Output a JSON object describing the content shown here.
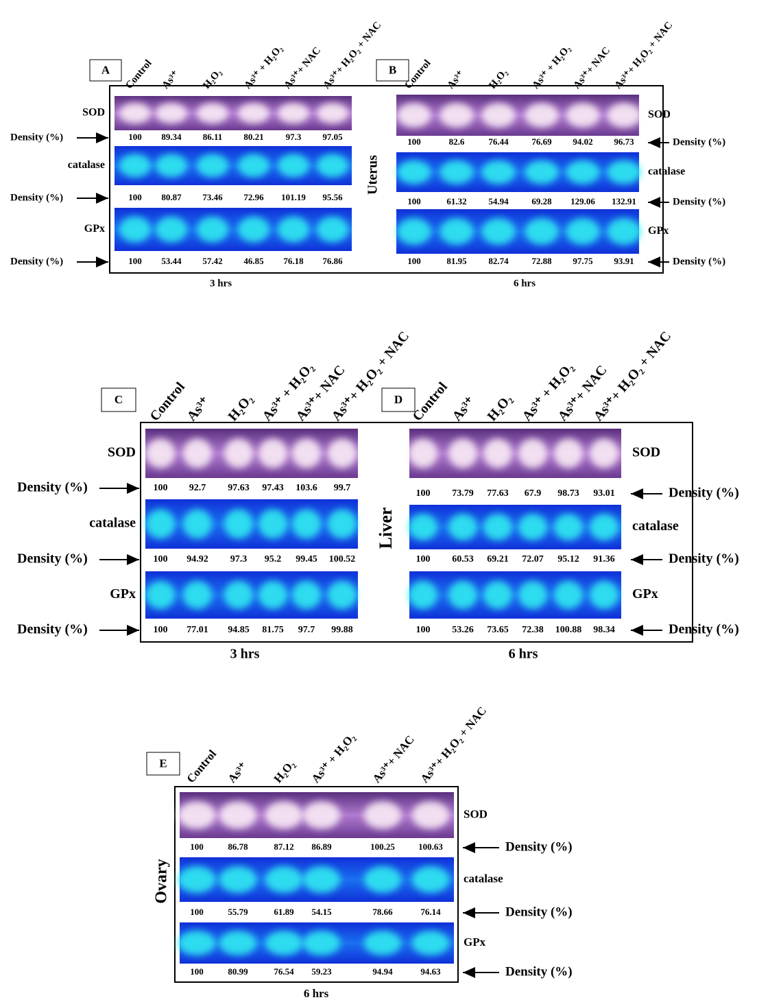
{
  "lanes": [
    "Control",
    "As³⁺",
    "H₂O₂",
    "As³⁺ + H₂O₂",
    "As³⁺+ NAC",
    "As³⁺+ H₂O₂ + NAC"
  ],
  "density_label": "Density (%)",
  "groups": [
    {
      "tissue": "Uterus",
      "panels": [
        {
          "letter": "A",
          "time": "3 hrs",
          "rows": [
            {
              "enzyme": "SOD",
              "densities": [
                100,
                89.34,
                86.11,
                80.21,
                97.3,
                97.05
              ]
            },
            {
              "enzyme": "catalase",
              "densities": [
                100,
                80.87,
                73.46,
                72.96,
                101.19,
                95.56
              ]
            },
            {
              "enzyme": "GPx",
              "densities": [
                100,
                53.44,
                57.42,
                46.85,
                76.18,
                76.86
              ]
            }
          ]
        },
        {
          "letter": "B",
          "time": "6 hrs",
          "rows": [
            {
              "enzyme": "SOD",
              "densities": [
                100,
                82.6,
                76.44,
                76.69,
                94.02,
                96.73
              ]
            },
            {
              "enzyme": "catalase",
              "densities": [
                100,
                61.32,
                54.94,
                69.28,
                129.06,
                132.91
              ]
            },
            {
              "enzyme": "GPx",
              "densities": [
                100,
                81.95,
                82.74,
                72.88,
                97.75,
                93.91
              ]
            }
          ]
        }
      ]
    },
    {
      "tissue": "Liver",
      "panels": [
        {
          "letter": "C",
          "time": "3 hrs",
          "rows": [
            {
              "enzyme": "SOD",
              "densities": [
                100,
                92.7,
                97.63,
                97.43,
                103.6,
                99.7
              ]
            },
            {
              "enzyme": "catalase",
              "densities": [
                100,
                94.92,
                97.3,
                95.2,
                99.45,
                100.52
              ]
            },
            {
              "enzyme": "GPx",
              "densities": [
                100,
                77.01,
                94.85,
                81.75,
                97.7,
                99.88
              ]
            }
          ]
        },
        {
          "letter": "D",
          "time": "6 hrs",
          "rows": [
            {
              "enzyme": "SOD",
              "densities": [
                100,
                73.79,
                77.63,
                67.9,
                98.73,
                93.01
              ]
            },
            {
              "enzyme": "catalase",
              "densities": [
                100,
                60.53,
                69.21,
                72.07,
                95.12,
                91.36
              ]
            },
            {
              "enzyme": "GPx",
              "densities": [
                100,
                53.26,
                73.65,
                72.38,
                100.88,
                98.34
              ]
            }
          ]
        }
      ]
    },
    {
      "tissue": "Ovary",
      "panels": [
        {
          "letter": "E",
          "time": "6 hrs",
          "rows": [
            {
              "enzyme": "SOD",
              "densities": [
                100,
                86.78,
                87.12,
                86.89,
                100.25,
                100.63
              ]
            },
            {
              "enzyme": "catalase",
              "densities": [
                100,
                55.79,
                61.89,
                54.15,
                78.66,
                76.14
              ]
            },
            {
              "enzyme": "GPx",
              "densities": [
                100,
                80.99,
                76.54,
                59.23,
                94.94,
                94.63
              ]
            }
          ]
        }
      ]
    }
  ]
}
